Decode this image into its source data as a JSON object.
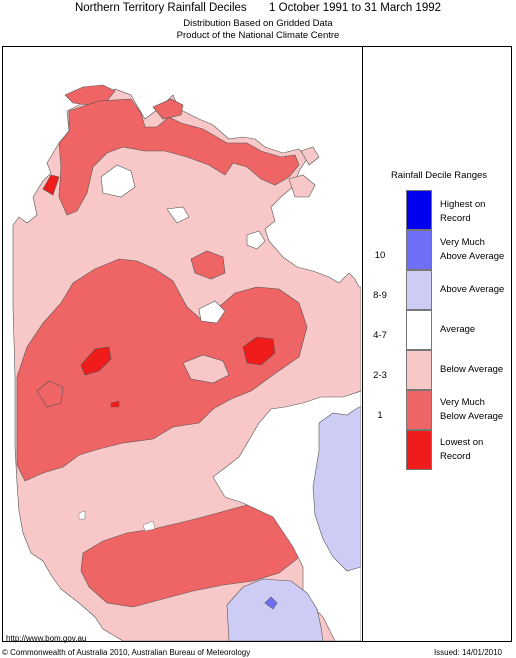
{
  "header": {
    "title": "Northern Territory Rainfall Deciles       1 October 1991 to 31 March 1992",
    "subtitle1": "Distribution Based on Gridded Data",
    "subtitle2": "Product of the National Climate Centre"
  },
  "legend": {
    "title": "Rainfall Decile Ranges",
    "items": [
      {
        "range": "",
        "label": "Highest on Record",
        "color": "#0000ee"
      },
      {
        "range": "10",
        "label": "Very Much Above Average",
        "color": "#6e6ef6"
      },
      {
        "range": "8-9",
        "label": "Above Average",
        "color": "#ccccf5"
      },
      {
        "range": "4-7",
        "label": "Average",
        "color": "#ffffff"
      },
      {
        "range": "2-3",
        "label": "Below Average",
        "color": "#f8c8c8"
      },
      {
        "range": "1",
        "label": "Very Much Below Average",
        "color": "#ef6464"
      },
      {
        "range": "",
        "label": "Lowest on Record",
        "color": "#f01c1c"
      }
    ]
  },
  "footer": {
    "url": "http://www.bom.gov.au",
    "copyright": "© Commonwealth of Australia 2010, Australian Bureau of Meteorology",
    "issued": "Issued: 14/01/2010"
  }
}
